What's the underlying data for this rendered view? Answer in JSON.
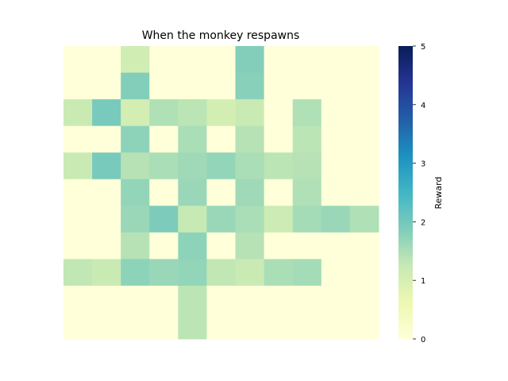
{
  "chart_data": {
    "type": "heatmap",
    "title": "When the monkey respawns",
    "colorbar": {
      "label": "Reward",
      "range": [
        0,
        5
      ],
      "ticks": [
        0,
        1,
        2,
        3,
        4,
        5
      ],
      "colormap": "YlGnBu"
    },
    "grid": false,
    "rows": 11,
    "cols": 11,
    "values": [
      [
        0,
        0,
        1.1,
        0,
        0,
        0,
        1.85,
        0,
        0,
        0,
        0
      ],
      [
        0,
        0,
        1.85,
        0,
        0,
        0,
        1.8,
        0,
        0,
        0,
        0
      ],
      [
        1.2,
        1.95,
        1.05,
        1.45,
        1.35,
        1.05,
        1.2,
        0,
        1.45,
        0,
        0
      ],
      [
        0,
        0,
        1.75,
        0,
        1.5,
        0,
        1.4,
        0,
        1.35,
        0,
        0
      ],
      [
        1.2,
        1.95,
        1.4,
        1.5,
        1.6,
        1.7,
        1.5,
        1.35,
        1.4,
        0,
        0
      ],
      [
        0,
        0,
        1.7,
        0,
        1.65,
        0,
        1.6,
        0,
        1.45,
        0,
        0
      ],
      [
        0,
        0,
        1.65,
        1.9,
        1.25,
        1.65,
        1.5,
        1.15,
        1.55,
        1.65,
        1.45
      ],
      [
        0,
        0,
        1.4,
        0,
        1.75,
        0,
        1.4,
        0,
        0,
        0,
        0
      ],
      [
        1.3,
        1.2,
        1.75,
        1.65,
        1.7,
        1.3,
        1.2,
        1.5,
        1.55,
        0,
        0
      ],
      [
        0,
        0,
        0,
        0,
        1.35,
        0,
        0,
        0,
        0,
        0,
        0
      ],
      [
        0,
        0,
        0,
        0,
        1.35,
        0,
        0,
        0,
        0,
        0,
        0
      ]
    ]
  }
}
